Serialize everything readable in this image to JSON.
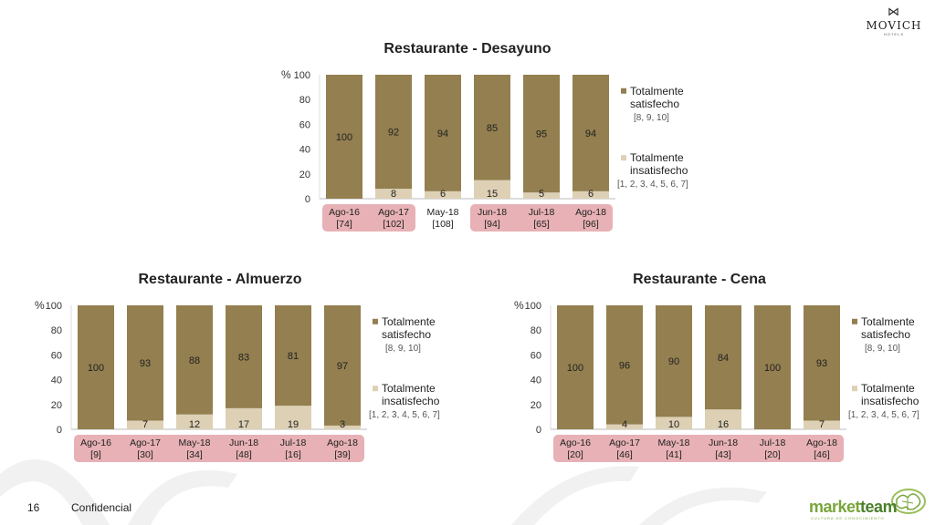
{
  "logo": {
    "brand": "MOVICH",
    "sub": "HOTELS"
  },
  "footer": {
    "page": "16",
    "confidential": "Confidencial"
  },
  "logo2": {
    "name_a": "market",
    "name_b": "team",
    "sub": "CULTURA DE CONOCIMIENTO"
  },
  "colors": {
    "satisfied": "#937F4F",
    "unsatisfied": "#DDD0B5",
    "pink": "#E7B1B5"
  },
  "chart_data": [
    {
      "type": "bar",
      "stacked": true,
      "title": "Restaurante - Desayuno",
      "ylabel": "%",
      "ylim": [
        0,
        100
      ],
      "yticks": [
        "0",
        "20",
        "40",
        "60",
        "80",
        "100"
      ],
      "categories": [
        "Ago-16",
        "Ago-17",
        "May-18",
        "Jun-18",
        "Jul-18",
        "Ago-18"
      ],
      "counts": [
        "[74]",
        "[102]",
        "[108]",
        "[94]",
        "[65]",
        "[96]"
      ],
      "highlight": [
        true,
        true,
        false,
        true,
        true,
        true
      ],
      "series": [
        {
          "name": "Totalmente satisfecho",
          "range": "[8, 9, 10]",
          "values": [
            100,
            92,
            94,
            85,
            95,
            94
          ]
        },
        {
          "name": "Totalmente insatisfecho",
          "range": "[1, 2, 3, 4, 5, 6, 7]",
          "values": [
            0,
            8,
            6,
            15,
            5,
            6
          ]
        }
      ],
      "legend": "right"
    },
    {
      "type": "bar",
      "stacked": true,
      "title": "Restaurante - Almuerzo",
      "ylabel": "%",
      "ylim": [
        0,
        100
      ],
      "yticks": [
        "0",
        "20",
        "40",
        "60",
        "80",
        "100"
      ],
      "categories": [
        "Ago-16",
        "Ago-17",
        "May-18",
        "Jun-18",
        "Jul-18",
        "Ago-18"
      ],
      "counts": [
        "[9]",
        "[30]",
        "[34]",
        "[48]",
        "[16]",
        "[39]"
      ],
      "highlight": [
        true,
        true,
        true,
        true,
        true,
        true
      ],
      "series": [
        {
          "name": "Totalmente satisfecho",
          "range": "[8, 9, 10]",
          "values": [
            100,
            93,
            88,
            83,
            81,
            97
          ]
        },
        {
          "name": "Totalmente insatisfecho",
          "range": "[1, 2, 3, 4, 5, 6, 7]",
          "values": [
            0,
            7,
            12,
            17,
            19,
            3
          ]
        }
      ],
      "legend": "right"
    },
    {
      "type": "bar",
      "stacked": true,
      "title": "Restaurante - Cena",
      "ylabel": "%",
      "ylim": [
        0,
        100
      ],
      "yticks": [
        "0",
        "20",
        "40",
        "60",
        "80",
        "100"
      ],
      "categories": [
        "Ago-16",
        "Ago-17",
        "May-18",
        "Jun-18",
        "Jul-18",
        "Ago-18"
      ],
      "counts": [
        "[20]",
        "[46]",
        "[41]",
        "[43]",
        "[20]",
        "[46]"
      ],
      "highlight": [
        true,
        true,
        true,
        true,
        true,
        true
      ],
      "series": [
        {
          "name": "Totalmente satisfecho",
          "range": "[8, 9, 10]",
          "values": [
            100,
            96,
            90,
            84,
            100,
            93
          ]
        },
        {
          "name": "Totalmente insatisfecho",
          "range": "[1, 2, 3, 4, 5, 6, 7]",
          "values": [
            0,
            4,
            10,
            16,
            0,
            7
          ]
        }
      ],
      "legend": "right"
    }
  ]
}
